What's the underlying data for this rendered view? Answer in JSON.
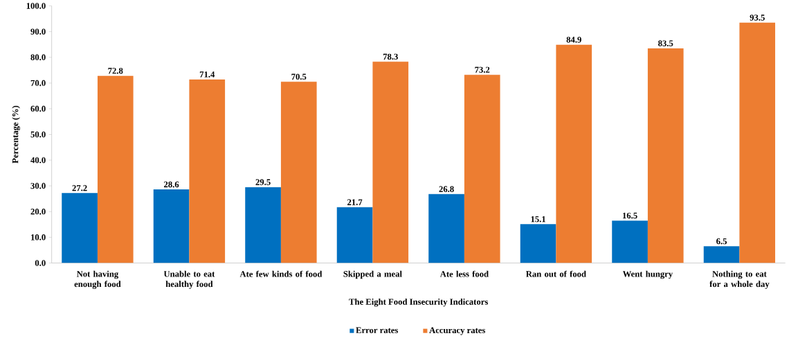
{
  "chart_data": {
    "type": "bar",
    "xlabel": "The Eight Food Insecurity Indicators",
    "ylabel": "Percentage (%)",
    "categories": [
      "Not having enough food",
      "Unable to eat healthy food",
      "Ate few kinds of food",
      "Skipped a meal",
      "Ate less food",
      "Ran out of food",
      "Went hungry",
      "Nothing to eat for a whole day"
    ],
    "series": [
      {
        "name": "Error rates",
        "color": "#0070c0",
        "values": [
          27.2,
          28.6,
          29.5,
          21.7,
          26.8,
          15.1,
          16.5,
          6.5
        ]
      },
      {
        "name": "Accuracy rates",
        "color": "#ed7d31",
        "values": [
          72.8,
          71.4,
          70.5,
          78.3,
          73.2,
          84.9,
          83.5,
          93.5
        ]
      }
    ],
    "ylim": [
      0,
      100
    ],
    "yticks": [
      {
        "value": 0,
        "label": "0.0"
      },
      {
        "value": 10,
        "label": "10.0"
      },
      {
        "value": 20,
        "label": "20.0"
      },
      {
        "value": 30,
        "label": "30.0"
      },
      {
        "value": 40,
        "label": "40.0"
      },
      {
        "value": 50,
        "label": "50.0"
      },
      {
        "value": 60,
        "label": "60.0"
      },
      {
        "value": 70,
        "label": "70.0"
      },
      {
        "value": 80,
        "label": "80.0"
      },
      {
        "value": 90,
        "label": "90.0"
      },
      {
        "value": 100,
        "label": "100.0"
      }
    ],
    "data_labels": true,
    "legend": "bottom",
    "grid": false
  }
}
